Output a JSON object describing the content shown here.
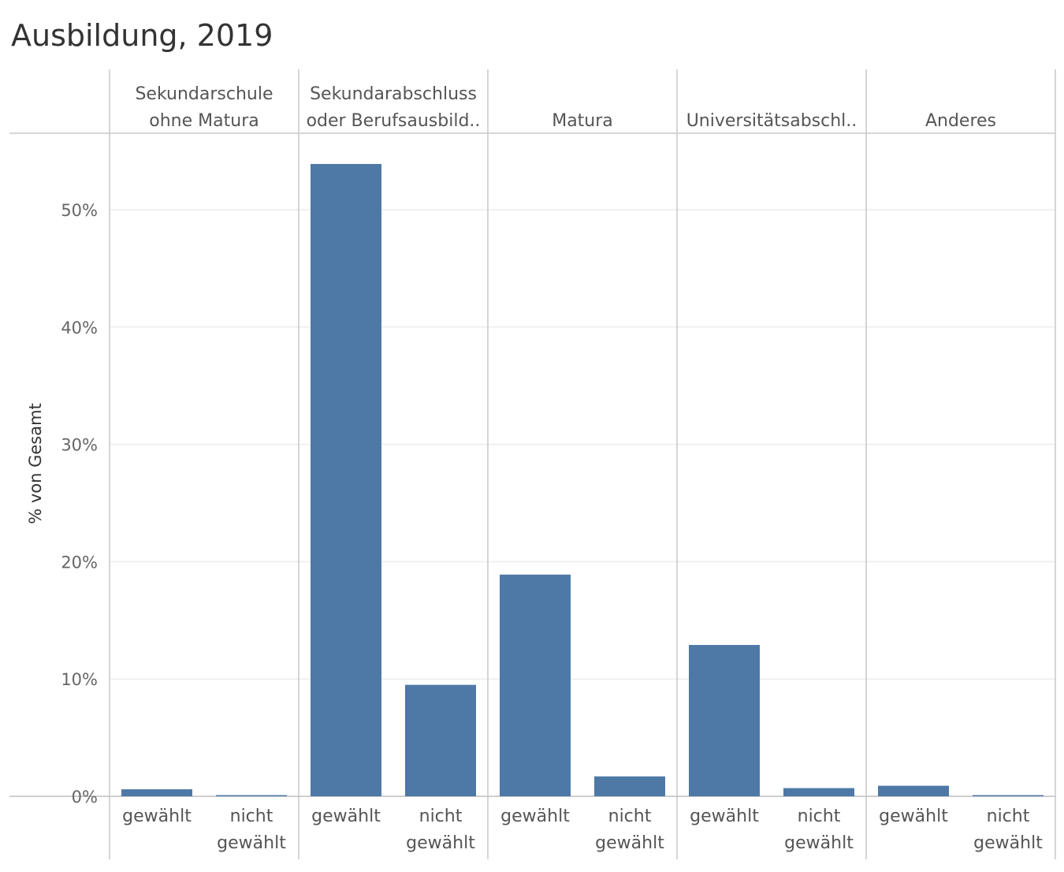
{
  "chart_data": {
    "type": "bar",
    "title": "Ausbildung, 2019",
    "ylabel": "% von Gesamt",
    "ylim": [
      0,
      55
    ],
    "yticks": [
      "0%",
      "10%",
      "20%",
      "30%",
      "40%",
      "50%"
    ],
    "ytick_values": [
      0,
      10,
      20,
      30,
      40,
      50
    ],
    "grid": true,
    "bar_color": "#4e79a7",
    "groups": [
      {
        "label": "Sekundarschule ohne Matura",
        "header_lines": [
          "Sekundarschule",
          "ohne Matura"
        ],
        "bars": [
          {
            "label": "gewählt",
            "label_lines": [
              "gewählt"
            ],
            "value": 0.6
          },
          {
            "label": "nicht gewählt",
            "label_lines": [
              "nicht",
              "gewählt"
            ],
            "value": 0.05
          }
        ]
      },
      {
        "label": "Sekundarabschluss oder Berufsausbild..",
        "header_lines": [
          "Sekundarabschluss",
          "oder Berufsausbild.."
        ],
        "bars": [
          {
            "label": "gewählt",
            "label_lines": [
              "gewählt"
            ],
            "value": 53.9
          },
          {
            "label": "nicht gewählt",
            "label_lines": [
              "nicht",
              "gewählt"
            ],
            "value": 9.5
          }
        ]
      },
      {
        "label": "Matura",
        "header_lines": [
          "Matura"
        ],
        "bars": [
          {
            "label": "gewählt",
            "label_lines": [
              "gewählt"
            ],
            "value": 18.9
          },
          {
            "label": "nicht gewählt",
            "label_lines": [
              "nicht",
              "gewählt"
            ],
            "value": 1.7
          }
        ]
      },
      {
        "label": "Universitätsabschl..",
        "header_lines": [
          "Universitätsabschl.."
        ],
        "bars": [
          {
            "label": "gewählt",
            "label_lines": [
              "gewählt"
            ],
            "value": 12.9
          },
          {
            "label": "nicht gewählt",
            "label_lines": [
              "nicht",
              "gewählt"
            ],
            "value": 0.7
          }
        ]
      },
      {
        "label": "Anderes",
        "header_lines": [
          "Anderes"
        ],
        "bars": [
          {
            "label": "gewählt",
            "label_lines": [
              "gewählt"
            ],
            "value": 0.9
          },
          {
            "label": "nicht gewählt",
            "label_lines": [
              "nicht",
              "gewählt"
            ],
            "value": 0.05
          }
        ]
      }
    ]
  }
}
